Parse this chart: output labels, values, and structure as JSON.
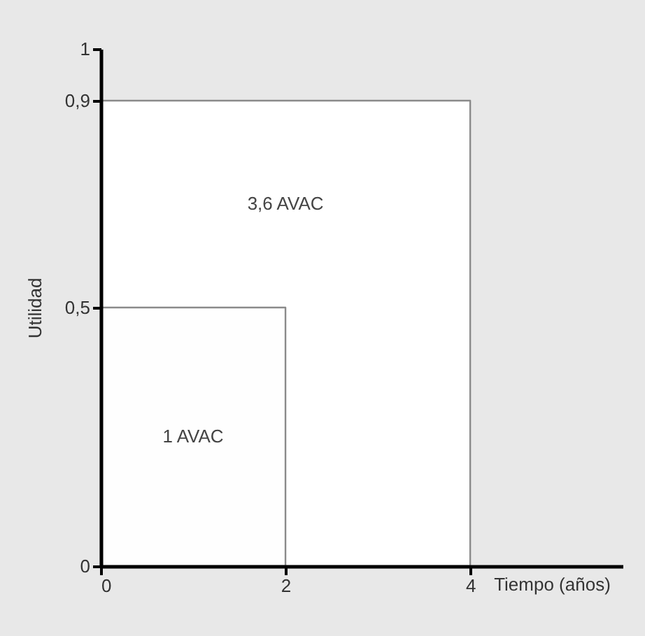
{
  "chart_data": {
    "type": "area",
    "xlabel": "Tiempo (años)",
    "ylabel": "Utilidad",
    "xlim": [
      0,
      5.65
    ],
    "xticks": [
      0,
      2,
      4
    ],
    "ylim": [
      0,
      1
    ],
    "yticks": [
      0,
      {
        "value": 0.5,
        "label": "0,5"
      },
      {
        "value": 0.9,
        "label": "0,9"
      },
      1
    ],
    "series": [
      {
        "color": "#ffffff",
        "x": [
          0,
          4
        ],
        "values": [
          0.9,
          0.9
        ]
      },
      {
        "color": "#fefefe",
        "x": [
          0,
          2
        ],
        "values": [
          0.5,
          0.5
        ]
      }
    ],
    "annotations": [
      "3,6 AVAC",
      "1 AVAC"
    ],
    "grid": false
  }
}
